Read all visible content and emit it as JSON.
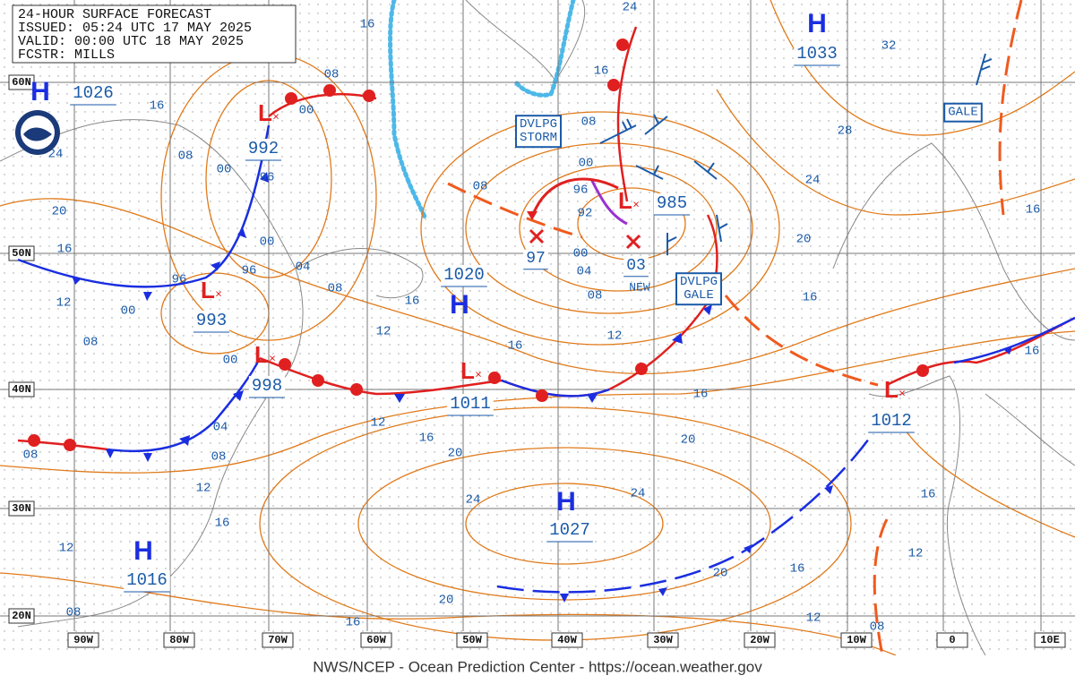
{
  "header": {
    "lines": [
      "24-HOUR SURFACE FORECAST",
      "ISSUED: 05:24 UTC 17 MAY 2025",
      "VALID: 00:00 UTC 18 MAY 2025",
      "FCSTR: MILLS"
    ]
  },
  "latitude_labels": [
    "60N",
    "50N",
    "40N",
    "30N",
    "20N"
  ],
  "longitude_labels": [
    "90W",
    "80W",
    "70W",
    "60W",
    "50W",
    "40W",
    "30W",
    "20W",
    "10W",
    "0",
    "10E"
  ],
  "highs": [
    {
      "symbol": "H",
      "pressure": "1026"
    },
    {
      "symbol": "H",
      "pressure": "1020"
    },
    {
      "symbol": "H",
      "pressure": "1033"
    },
    {
      "symbol": "H",
      "pressure": "1027"
    },
    {
      "symbol": "H",
      "pressure": "1016"
    }
  ],
  "lows": [
    {
      "symbol": "L",
      "pressure": "992"
    },
    {
      "symbol": "L",
      "pressure": "993"
    },
    {
      "symbol": "L",
      "pressure": "998"
    },
    {
      "symbol": "L",
      "pressure": "985"
    },
    {
      "symbol": "L",
      "pressure": "1011"
    },
    {
      "symbol": "L",
      "pressure": "1012"
    }
  ],
  "forecast_positions": [
    "97",
    "03"
  ],
  "isobar_labels": [
    "16",
    "24",
    "16",
    "08",
    "00",
    "16",
    "24",
    "08",
    "00",
    "96",
    "20",
    "16",
    "00",
    "96",
    "04",
    "12",
    "96",
    "00",
    "08",
    "16",
    "08",
    "12",
    "16",
    "00",
    "08",
    "08",
    "00",
    "96",
    "92",
    "00",
    "04",
    "08",
    "12",
    "32",
    "28",
    "24",
    "20",
    "16",
    "16",
    "16",
    "16",
    "20",
    "12",
    "16",
    "20",
    "04",
    "08",
    "12",
    "24",
    "24",
    "16",
    "08",
    "12",
    "16",
    "12",
    "20",
    "16",
    "20",
    "16",
    "08",
    "12",
    "08"
  ],
  "boxes": [
    {
      "lines": [
        "DVLPG",
        "STORM"
      ]
    },
    {
      "lines": [
        "GALE"
      ]
    },
    {
      "lines": [
        "DVLPG",
        "GALE"
      ]
    }
  ],
  "annotation": "NEW",
  "footer": "NWS/NCEP - Ocean Prediction Center - https://ocean.weather.gov"
}
